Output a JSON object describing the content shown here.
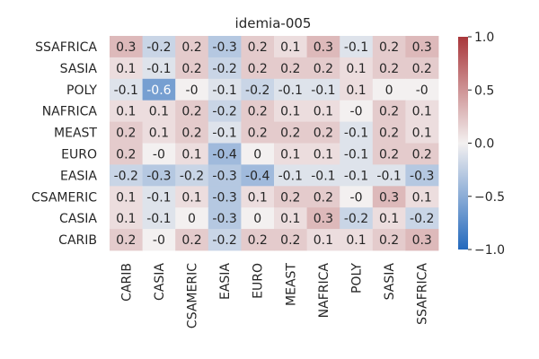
{
  "chart_data": {
    "type": "heatmap",
    "title": "idemia-005",
    "xlabel": "",
    "ylabel": "",
    "x_categories": [
      "CARIB",
      "CASIA",
      "CSAMERIC",
      "EASIA",
      "EURO",
      "MEAST",
      "NAFRICA",
      "POLY",
      "SASIA",
      "SSAFRICA"
    ],
    "y_categories": [
      "SSAFRICA",
      "SASIA",
      "POLY",
      "NAFRICA",
      "MEAST",
      "EURO",
      "EASIA",
      "CSAMERIC",
      "CASIA",
      "CARIB"
    ],
    "values": [
      [
        0.3,
        -0.2,
        0.2,
        -0.3,
        0.2,
        0.1,
        0.3,
        -0.1,
        0.2,
        0.3
      ],
      [
        0.1,
        -0.1,
        0.2,
        -0.2,
        0.2,
        0.2,
        0.2,
        0.1,
        0.2,
        0.2
      ],
      [
        -0.1,
        -0.6,
        -0.0,
        -0.1,
        -0.2,
        -0.1,
        -0.1,
        0.1,
        0.0,
        -0.0
      ],
      [
        0.1,
        0.1,
        0.2,
        -0.2,
        0.2,
        0.1,
        0.1,
        -0.0,
        0.2,
        0.1
      ],
      [
        0.2,
        0.1,
        0.2,
        -0.1,
        0.2,
        0.2,
        0.2,
        -0.1,
        0.2,
        0.1
      ],
      [
        0.2,
        -0.0,
        0.1,
        -0.4,
        0.0,
        0.1,
        0.1,
        -0.1,
        0.2,
        0.2
      ],
      [
        -0.2,
        -0.3,
        -0.2,
        -0.3,
        -0.4,
        -0.1,
        -0.1,
        -0.1,
        -0.1,
        -0.3
      ],
      [
        0.1,
        -0.1,
        0.1,
        -0.3,
        0.1,
        0.2,
        0.2,
        -0.0,
        0.3,
        0.1
      ],
      [
        0.1,
        -0.1,
        0.0,
        -0.3,
        0.0,
        0.1,
        0.3,
        -0.2,
        0.1,
        -0.2
      ],
      [
        0.2,
        -0.0,
        0.2,
        -0.2,
        0.2,
        0.2,
        0.1,
        0.1,
        0.2,
        0.3
      ]
    ],
    "cell_labels": [
      [
        "0.3",
        "-0.2",
        "0.2",
        "-0.3",
        "0.2",
        "0.1",
        "0.3",
        "-0.1",
        "0.2",
        "0.3"
      ],
      [
        "0.1",
        "-0.1",
        "0.2",
        "-0.2",
        "0.2",
        "0.2",
        "0.2",
        "0.1",
        "0.2",
        "0.2"
      ],
      [
        "-0.1",
        "-0.6",
        "-0",
        "-0.1",
        "-0.2",
        "-0.1",
        "-0.1",
        "0.1",
        "0",
        "-0"
      ],
      [
        "0.1",
        "0.1",
        "0.2",
        "-0.2",
        "0.2",
        "0.1",
        "0.1",
        "-0",
        "0.2",
        "0.1"
      ],
      [
        "0.2",
        "0.1",
        "0.2",
        "-0.1",
        "0.2",
        "0.2",
        "0.2",
        "-0.1",
        "0.2",
        "0.1"
      ],
      [
        "0.2",
        "-0",
        "0.1",
        "-0.4",
        "0",
        "0.1",
        "0.1",
        "-0.1",
        "0.2",
        "0.2"
      ],
      [
        "-0.2",
        "-0.3",
        "-0.2",
        "-0.3",
        "-0.4",
        "-0.1",
        "-0.1",
        "-0.1",
        "-0.1",
        "-0.3"
      ],
      [
        "0.1",
        "-0.1",
        "0.1",
        "-0.3",
        "0.1",
        "0.2",
        "0.2",
        "-0",
        "0.3",
        "0.1"
      ],
      [
        "0.1",
        "-0.1",
        "0",
        "-0.3",
        "0",
        "0.1",
        "0.3",
        "-0.2",
        "0.1",
        "-0.2"
      ],
      [
        "0.2",
        "-0",
        "0.2",
        "-0.2",
        "0.2",
        "0.2",
        "0.1",
        "0.1",
        "0.2",
        "0.3"
      ]
    ],
    "colorbar": {
      "colormap": "vlag",
      "vmin": -1.0,
      "vmax": 1.0,
      "ticks": [
        1.0,
        0.5,
        0.0,
        -0.5,
        -1.0
      ],
      "tick_labels": [
        "1.0",
        "0.5",
        "0.0",
        "−0.5",
        "−1.0"
      ],
      "color_low": "#2369bd",
      "color_mid": "#f3f0f0",
      "color_high": "#a9373b"
    }
  }
}
